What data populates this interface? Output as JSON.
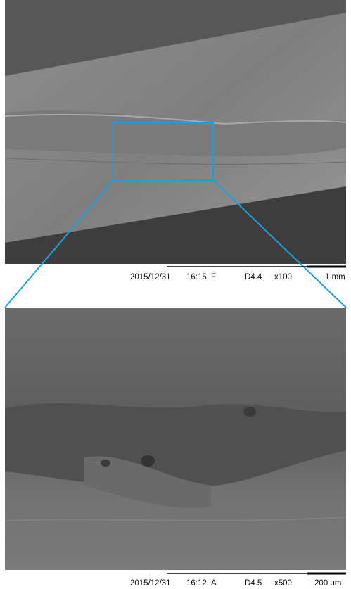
{
  "panels": [
    {
      "caption": {
        "date": "2015/12/31",
        "time": "16:15",
        "mode": "F",
        "detector": "D4.4",
        "magnification": "x100",
        "scale": "1 mm"
      }
    },
    {
      "caption": {
        "date": "2015/12/31",
        "time": "16:12",
        "mode": "A",
        "detector": "D4.5",
        "magnification": "x500",
        "scale": "200 um"
      }
    }
  ]
}
